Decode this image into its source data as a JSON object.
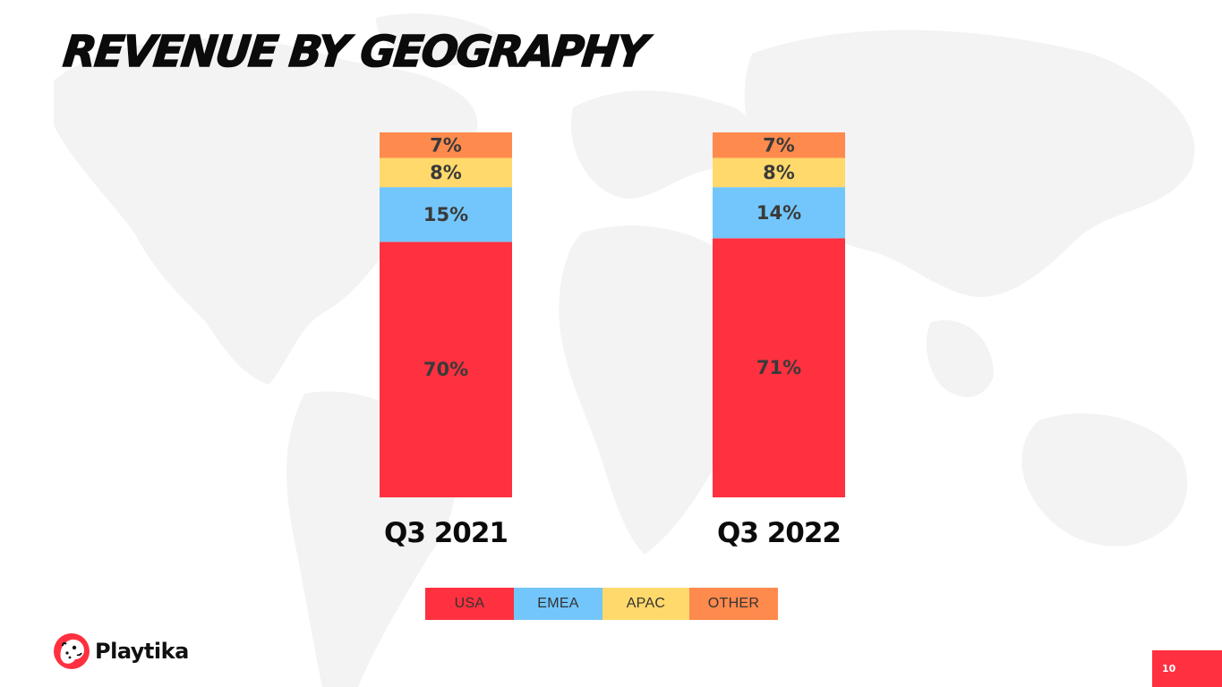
{
  "slide": {
    "title": "REVENUE BY GEOGRAPHY",
    "page_number": "10"
  },
  "brand": {
    "name": "Playtika",
    "logo_icon": "leopard-head-icon",
    "accent_color": "#ff3040"
  },
  "chart_data": {
    "type": "bar",
    "stacked": true,
    "categories": [
      "Q3 2021",
      "Q3 2022"
    ],
    "series": [
      {
        "name": "USA",
        "color": "#ff3040",
        "values": [
          70,
          71
        ],
        "labels": [
          "70%",
          "71%"
        ]
      },
      {
        "name": "EMEA",
        "color": "#73c6fb",
        "values": [
          15,
          14
        ],
        "labels": [
          "15%",
          "14%"
        ]
      },
      {
        "name": "APAC",
        "color": "#ffd96b",
        "values": [
          8,
          8
        ],
        "labels": [
          "8%",
          "8%"
        ]
      },
      {
        "name": "OTHER",
        "color": "#ff8a4d",
        "values": [
          7,
          7
        ],
        "labels": [
          "7%",
          "7%"
        ]
      }
    ],
    "title": "REVENUE BY GEOGRAPHY",
    "legend_position": "bottom-center",
    "grid": false,
    "axes_visible": false
  }
}
